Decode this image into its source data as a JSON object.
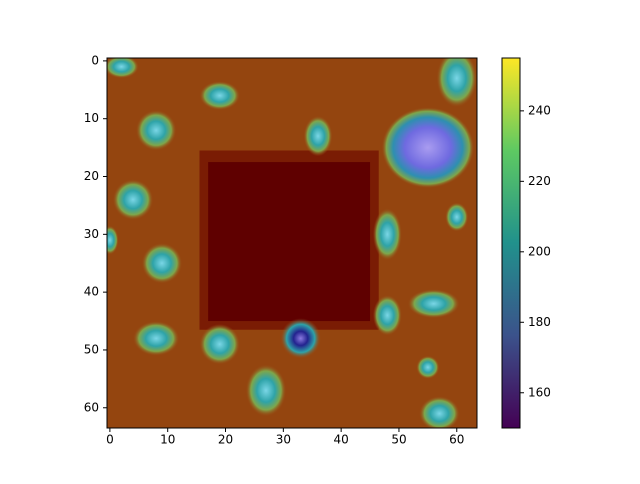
{
  "chart_data": {
    "type": "image",
    "xlim": [
      -0.5,
      63.5
    ],
    "ylim": [
      63.5,
      -0.5
    ],
    "xticks": [
      0,
      10,
      20,
      30,
      40,
      50,
      60
    ],
    "yticks": [
      0,
      10,
      20,
      30,
      40,
      50,
      60
    ],
    "colorbar": {
      "colormap": "viridis",
      "clim": [
        150,
        255
      ],
      "ticks": [
        160,
        180,
        200,
        220,
        240
      ]
    }
  }
}
